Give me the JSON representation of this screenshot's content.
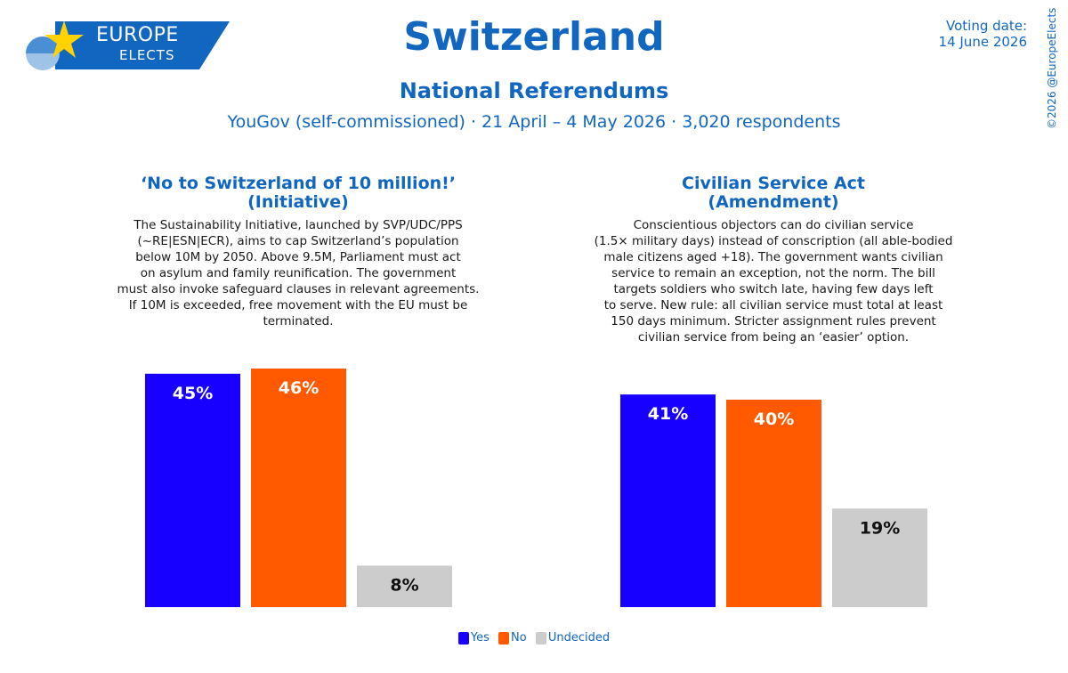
{
  "header": {
    "logo_line1": "EUROPE",
    "logo_line2": "ELECTS",
    "country": "Switzerland",
    "subtitle": "National Referendums",
    "poll_info": "YouGov (self-commissioned) · 21 April – 4 May 2026 · 3,020 respondents",
    "voting_date_label": "Voting date:",
    "voting_date": "14 June 2026",
    "copyright": "©2026 @EuropeElects"
  },
  "questions": [
    {
      "title_line1": "‘No to Switzerland of 10 million!’",
      "title_line2": "(Initiative)",
      "description_lines": [
        "The Sustainability Initiative, launched by SVP/UDC/PPS",
        "(~RE|ESN|ECR), aims to cap Switzerland’s population",
        "below 10M by 2050. Above 9.5M, Parliament must act",
        "on asylum and family reunification. The government",
        "must also invoke safeguard clauses in relevant agreements.",
        "If 10M is exceeded, free movement with the EU must be",
        "terminated."
      ]
    },
    {
      "title_line1": "Civilian Service Act",
      "title_line2": "(Amendment)",
      "description_lines": [
        "Conscientious objectors can do civilian service",
        "(1.5× military days) instead of conscription (all able-bodied",
        "male citizens aged +18). The government wants civilian",
        "service to remain an exception, not the norm. The bill",
        "targets soldiers who switch late, having few days left",
        "to serve. New rule: all civilian service must total at least",
        "150 days minimum. Stricter assignment rules prevent",
        "civilian service from being an ‘easier’ option."
      ]
    }
  ],
  "chart_data": [
    {
      "type": "bar",
      "categories": [
        "Yes",
        "No",
        "Undecided"
      ],
      "values": [
        45,
        46,
        8
      ],
      "value_labels": [
        "45%",
        "46%",
        "8%"
      ],
      "colors": [
        "#1700ff",
        "#ff5a00",
        "#cccccc"
      ],
      "label_colors": [
        "#ffffff",
        "#ffffff",
        "#111111"
      ],
      "ylim": [
        0,
        46
      ]
    },
    {
      "type": "bar",
      "categories": [
        "Yes",
        "No",
        "Undecided"
      ],
      "values": [
        41,
        40,
        19
      ],
      "value_labels": [
        "41%",
        "40%",
        "19%"
      ],
      "colors": [
        "#1700ff",
        "#ff5a00",
        "#cccccc"
      ],
      "label_colors": [
        "#ffffff",
        "#ffffff",
        "#111111"
      ],
      "ylim": [
        0,
        46
      ]
    }
  ],
  "legend": {
    "items": [
      {
        "label": "Yes",
        "color": "#1700ff"
      },
      {
        "label": "No",
        "color": "#ff5a00"
      },
      {
        "label": "Undecided",
        "color": "#cccccc"
      }
    ]
  },
  "colors": {
    "brand_blue": "#1166c0",
    "logo_yellow": "#ffd200"
  }
}
